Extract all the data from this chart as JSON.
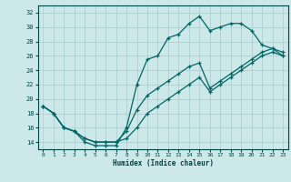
{
  "xlabel": "Humidex (Indice chaleur)",
  "bg_color": "#cce8e8",
  "line_color": "#006666",
  "grid_color": "#a8cccc",
  "xlim": [
    -0.5,
    23.5
  ],
  "ylim": [
    13,
    33
  ],
  "xticks": [
    0,
    1,
    2,
    3,
    4,
    5,
    6,
    7,
    8,
    9,
    10,
    11,
    12,
    13,
    14,
    15,
    16,
    17,
    18,
    19,
    20,
    21,
    22,
    23
  ],
  "yticks": [
    14,
    16,
    18,
    20,
    22,
    24,
    26,
    28,
    30,
    32
  ],
  "line1_x": [
    0,
    1,
    2,
    3,
    4,
    5,
    6,
    7,
    8,
    9,
    10,
    11,
    12,
    13,
    14,
    15,
    16,
    17,
    18,
    19,
    20,
    21,
    22,
    23
  ],
  "line1_y": [
    19,
    18,
    16,
    15.5,
    14,
    13.5,
    13.5,
    13.5,
    16,
    22,
    25.5,
    26,
    28.5,
    29,
    30.5,
    31.5,
    29.5,
    30,
    30.5,
    30.5,
    29.5,
    27.5,
    27,
    26.5
  ],
  "line2_x": [
    0,
    1,
    2,
    3,
    4,
    5,
    6,
    7,
    8,
    9,
    10,
    11,
    12,
    13,
    14,
    15,
    16,
    17,
    18,
    19,
    20,
    21,
    22,
    23
  ],
  "line2_y": [
    19,
    18,
    16,
    15.5,
    14.5,
    14,
    14,
    14,
    15.5,
    18.5,
    20.5,
    21.5,
    22.5,
    23.5,
    24.5,
    25,
    21.5,
    22.5,
    23.5,
    24.5,
    25.5,
    26.5,
    27,
    26
  ],
  "line3_x": [
    0,
    1,
    2,
    3,
    4,
    5,
    6,
    7,
    8,
    9,
    10,
    11,
    12,
    13,
    14,
    15,
    16,
    17,
    18,
    19,
    20,
    21,
    22,
    23
  ],
  "line3_y": [
    19,
    18,
    16,
    15.5,
    14.5,
    14,
    14,
    14,
    14.5,
    16,
    18,
    19,
    20,
    21,
    22,
    23,
    21,
    22,
    23,
    24,
    25,
    26,
    26.5,
    26
  ]
}
